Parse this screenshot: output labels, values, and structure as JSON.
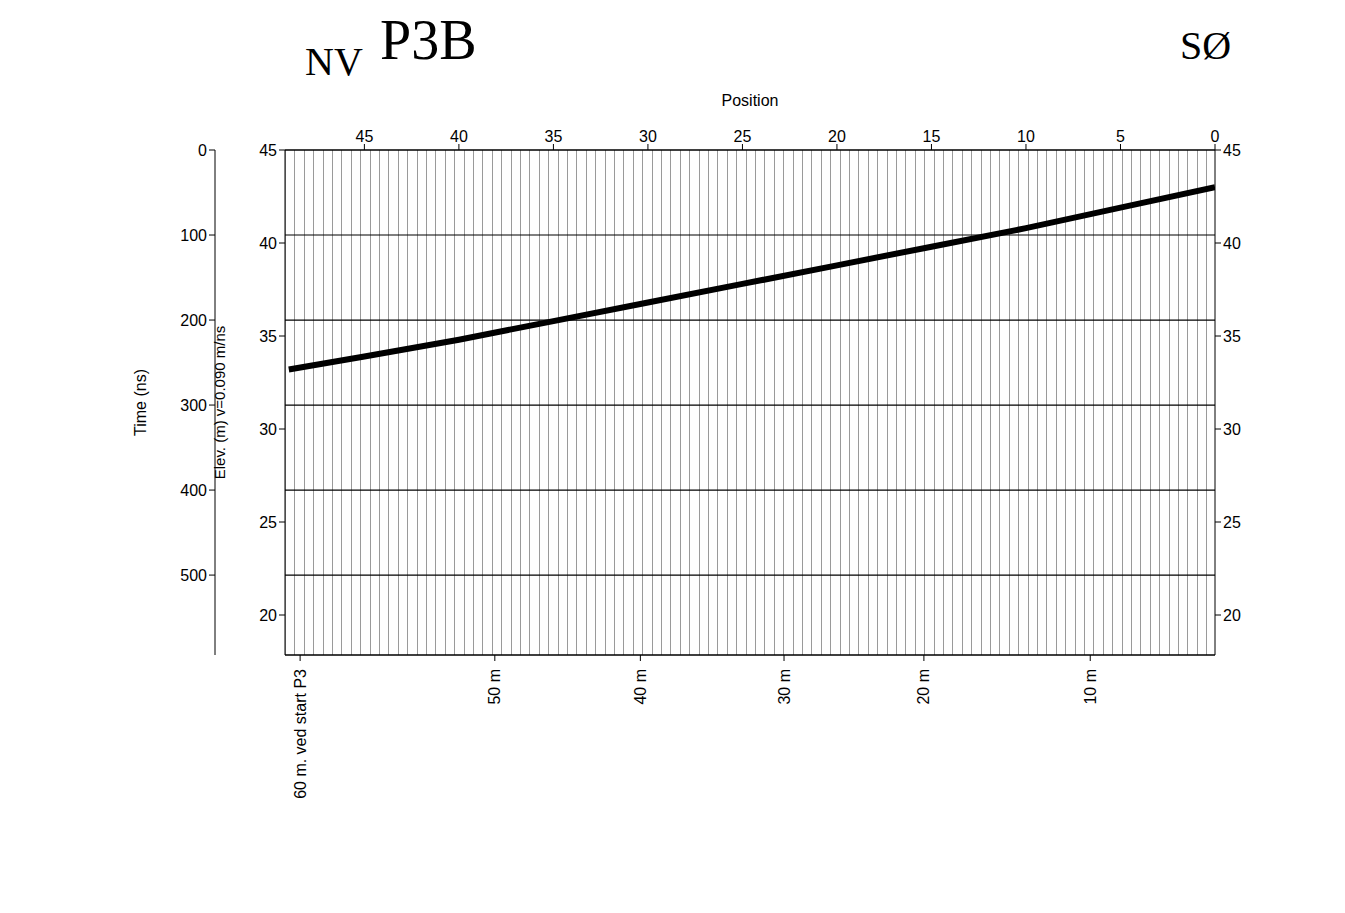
{
  "chart_data": {
    "type": "line",
    "title": "P3B",
    "annotations": [
      "NV",
      "SØ"
    ],
    "x_label": "Position",
    "x": [
      49,
      45,
      40,
      35,
      30,
      25,
      20,
      15,
      10,
      5,
      0
    ],
    "values": [
      33.2,
      33.9,
      34.8,
      35.8,
      36.8,
      37.8,
      38.8,
      39.8,
      40.8,
      41.9,
      43.0
    ],
    "color": "#000000",
    "xlim": [
      49.2,
      0
    ],
    "xticks": [
      45,
      40,
      35,
      30,
      25,
      20,
      15,
      10,
      5,
      0
    ],
    "x2lim": [
      49.2,
      0
    ],
    "x2ticks": [
      {
        "value": 48.4,
        "label": "60 m. ved start P3"
      },
      {
        "value": 38.1,
        "label": "50 m"
      },
      {
        "value": 30.4,
        "label": "40 m"
      },
      {
        "value": 22.8,
        "label": "30 m"
      },
      {
        "value": 15.4,
        "label": "20 m"
      },
      {
        "value": 6.6,
        "label": "10 m"
      }
    ],
    "y_label": "Elev. (m) v=0.090 m/ns",
    "ylim": [
      17.85,
      45
    ],
    "yticks": [
      45,
      40,
      35,
      30,
      25,
      20
    ],
    "y2_label": "Time (ns)",
    "y2lim": [
      0,
      594
    ],
    "y2ticks": [
      0,
      100,
      200,
      300,
      400,
      500
    ],
    "grid": true
  }
}
